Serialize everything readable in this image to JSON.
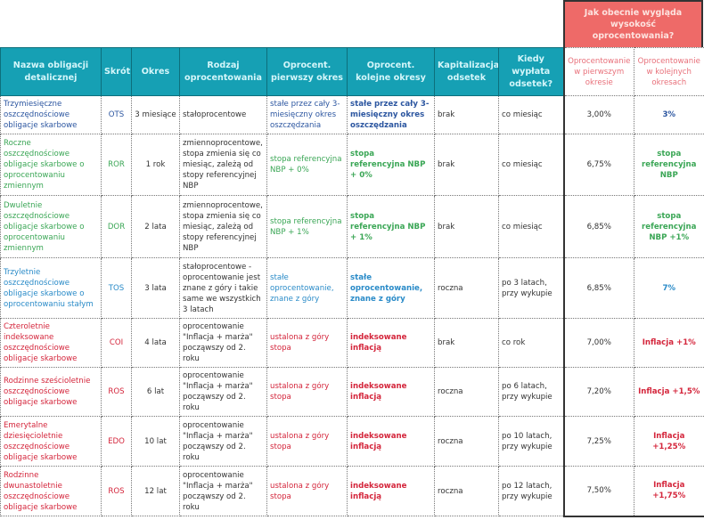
{
  "top_header": "Jak obecnie wygląda wysokość oprocentowania?",
  "headers": [
    "Nazwa obligacji detalicznej",
    "Skrót",
    "Okres",
    "Rodzaj oprocentowania",
    "Oprocent. pierwszy okres",
    "Oprocent. kolejne okresy",
    "Kapitalizacja odsetek",
    "Kiedy wypłata odsetek?",
    "Oprocentowanie w pierwszym okresie",
    "Oprocentowanie w kolejnych okresach"
  ],
  "colors": {
    "header_bg": "#16a0b4",
    "top_box": "#ee6a68",
    "dark_blue": "#2c56a0",
    "green": "#3aa655",
    "blue": "#2a8bc8",
    "red": "#d4253b"
  },
  "rows": [
    {
      "color": "dark_blue",
      "name": "Trzymiesięczne oszczędnościowe obligacje skarbowe",
      "code": "OTS",
      "period": "3 miesiące",
      "type": "stałoprocentowe",
      "first": "stałe przez cały 3-miesięczny okres oszczędzania",
      "next": "stałe przez cały 3-miesięczny okres oszczędzania",
      "cap": "brak",
      "payout": "co miesiąc",
      "rate_first": "3,00%",
      "rate_next": "3%"
    },
    {
      "color": "green",
      "name": "Roczne oszczędnościowe obligacje skarbowe o oprocentowaniu zmiennym",
      "code": "ROR",
      "period": "1 rok",
      "type": "zmiennoprocentowe, stopa zmienia się co miesiąc, zależą od stopy referencyjnej NBP",
      "first": "stopa referencyjna NBP + 0%",
      "next": "stopa referencyjna NBP + 0%",
      "cap": "brak",
      "payout": "co miesiąc",
      "rate_first": "6,75%",
      "rate_next": "stopa referencyjna NBP"
    },
    {
      "color": "green",
      "name": "Dwuletnie oszczędnościowe obligacje skarbowe o oprocentowaniu zmiennym",
      "code": "DOR",
      "period": "2 lata",
      "type": "zmiennoprocentowe, stopa zmienia się co miesiąc, zależą od stopy referencyjnej NBP",
      "first": "stopa referencyjna NBP + 1%",
      "next": "stopa referencyjna NBP + 1%",
      "cap": "brak",
      "payout": "co miesiąc",
      "rate_first": "6,85%",
      "rate_next": "stopa referencyjna NBP +1%"
    },
    {
      "color": "blue",
      "name": "Trzyletnie oszczędnościowe obligacje skarbowe o oprocentowaniu stałym",
      "code": "TOS",
      "period": "3 lata",
      "type": "stałoprocentowe - oprocentowanie jest znane z góry i takie same we wszystkich 3 latach",
      "first": "stałe oprocentowanie, znane z góry",
      "next": "stałe oprocentowanie, znane z góry",
      "cap": "roczna",
      "payout": "po 3 latach, przy wykupie",
      "rate_first": "6,85%",
      "rate_next": "7%"
    },
    {
      "color": "red",
      "name": "Czteroletnie indeksowane oszczędnościowe obligacje skarbowe",
      "code": "COI",
      "period": "4 lata",
      "type": "oprocentowanie \"Inflacja + marża\" począwszy od 2. roku",
      "first": "ustalona z góry stopa",
      "next": "indeksowane inflacją",
      "cap": "brak",
      "payout": "co rok",
      "rate_first": "7,00%",
      "rate_next": "Inflacja +1%"
    },
    {
      "color": "red",
      "name": "Rodzinne sześcioletnie oszczędnościowe obligacje skarbowe",
      "code": "ROS",
      "period": "6 lat",
      "type": "oprocentowanie \"Inflacja + marża\" począwszy od 2. roku",
      "first": "ustalona z góry stopa",
      "next": "indeksowane inflacją",
      "cap": "roczna",
      "payout": "po 6 latach, przy wykupie",
      "rate_first": "7,20%",
      "rate_next": "Inflacja +1,5%"
    },
    {
      "color": "red",
      "name": "Emerytalne dziesięcioletnie oszczędnościowe obligacje skarbowe",
      "code": "EDO",
      "period": "10 lat",
      "type": "oprocentowanie \"Inflacja + marża\" począwszy od 2. roku",
      "first": "ustalona z góry stopa",
      "next": "indeksowane inflacją",
      "cap": "roczna",
      "payout": "po 10 latach, przy wykupie",
      "rate_first": "7,25%",
      "rate_next": "Inflacja +1,25%"
    },
    {
      "color": "red",
      "name": "Rodzinne dwunastoletnie oszczędnościowe obligacje skarbowe",
      "code": "ROS",
      "period": "12 lat",
      "type": "oprocentowanie \"Inflacja + marża\" począwszy od 2. roku",
      "first": "ustalona z góry stopa",
      "next": "indeksowane inflacją",
      "cap": "roczna",
      "payout": "po 12 latach, przy wykupie",
      "rate_first": "7,50%",
      "rate_next": "Inflacja +1,75%"
    }
  ]
}
